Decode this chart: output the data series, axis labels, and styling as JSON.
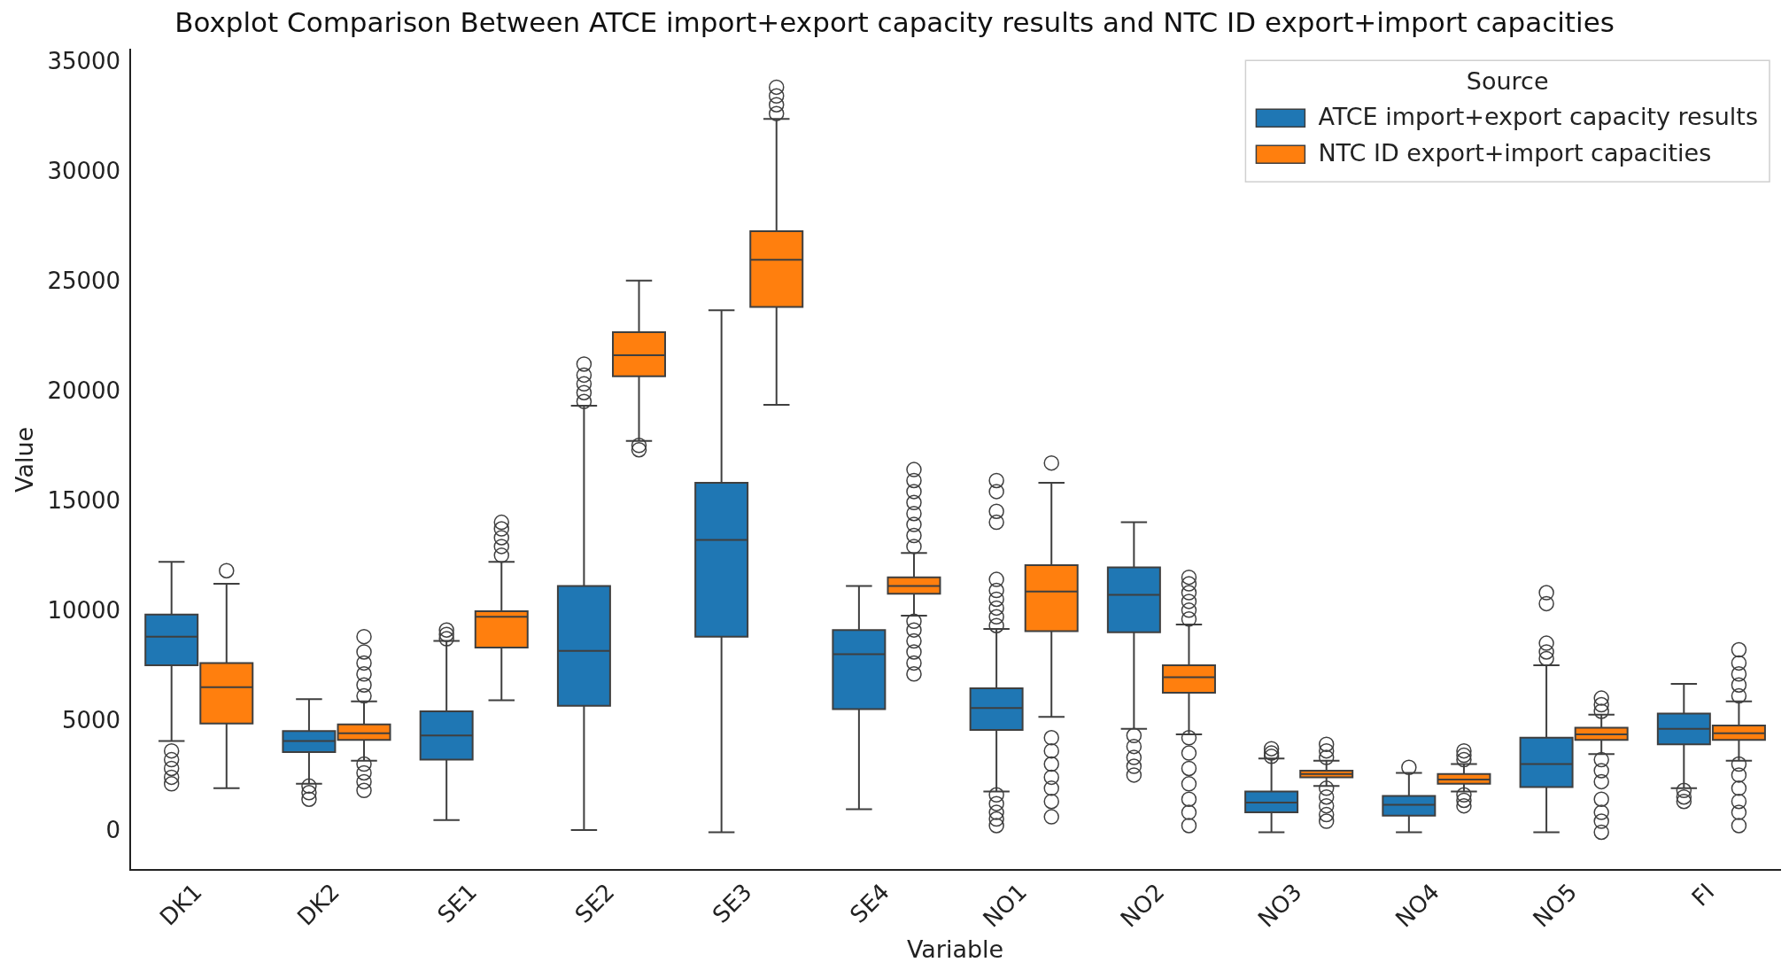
{
  "chart_data": {
    "type": "box",
    "title": "Boxplot Comparison Between ATCE import+export capacity results and NTC ID export+import capacities",
    "xlabel": "Variable",
    "ylabel": "Value",
    "legend_title": "Source",
    "legend": "top right",
    "marker": "circle",
    "categories": [
      "DK1",
      "DK2",
      "SE1",
      "SE2",
      "SE3",
      "SE4",
      "NO1",
      "NO2",
      "NO3",
      "NO4",
      "NO5",
      "FI"
    ],
    "ylim": [
      -1700,
      35600
    ],
    "yticks": [
      0,
      5000,
      10000,
      15000,
      20000,
      25000,
      30000,
      35000
    ],
    "series": [
      {
        "name": "ATCE import+export capacity results",
        "color": "#1f77b4",
        "boxes": [
          {
            "low": 4150,
            "q1": 7600,
            "median": 8900,
            "q3": 9900,
            "high": 12300,
            "outliers": [
              3700,
              3300,
              2900,
              2500,
              2200
            ]
          },
          {
            "low": 2200,
            "q1": 3650,
            "median": 4150,
            "q3": 4600,
            "high": 6050,
            "outliers": [
              2100,
              1800,
              1500
            ]
          },
          {
            "low": 550,
            "q1": 3300,
            "median": 4400,
            "q3": 5500,
            "high": 8700,
            "outliers": [
              8800,
              9000,
              9200
            ]
          },
          {
            "low": 100,
            "q1": 5750,
            "median": 8250,
            "q3": 11200,
            "high": 19400,
            "outliers": [
              19600,
              20000,
              20400,
              20800,
              21300
            ]
          },
          {
            "low": 0,
            "q1": 8900,
            "median": 13300,
            "q3": 15900,
            "high": 23750
          },
          {
            "low": 1050,
            "q1": 5600,
            "median": 8100,
            "q3": 9200,
            "high": 11200
          },
          {
            "low": 1850,
            "q1": 4650,
            "median": 5650,
            "q3": 6550,
            "high": 9250,
            "outliers": [
              9400,
              9800,
              10200,
              10600,
              11000,
              11500,
              14100,
              14600,
              15500,
              16000,
              1700,
              1300,
              900,
              600,
              300
            ]
          },
          {
            "low": 4700,
            "q1": 9100,
            "median": 10800,
            "q3": 12050,
            "high": 14100,
            "outliers": [
              4400,
              3900,
              3400,
              3000,
              2600
            ]
          },
          {
            "low": 0,
            "q1": 900,
            "median": 1350,
            "q3": 1850,
            "high": 3350,
            "outliers": [
              3450,
              3600,
              3800
            ]
          },
          {
            "low": 0,
            "q1": 750,
            "median": 1250,
            "q3": 1650,
            "high": 2700,
            "outliers": [
              2950
            ]
          },
          {
            "low": 0,
            "q1": 2050,
            "median": 3100,
            "q3": 4300,
            "high": 7600,
            "outliers": [
              7900,
              8200,
              8600,
              10400,
              10900
            ]
          },
          {
            "low": 2000,
            "q1": 4000,
            "median": 4700,
            "q3": 5400,
            "high": 6750,
            "outliers": [
              1900,
              1600,
              1400
            ]
          }
        ]
      },
      {
        "name": "NTC ID export+import capacities",
        "color": "#ff7f0e",
        "boxes": [
          {
            "low": 2000,
            "q1": 4950,
            "median": 6600,
            "q3": 7700,
            "high": 11300,
            "outliers": [
              11900
            ]
          },
          {
            "low": 3250,
            "q1": 4200,
            "median": 4500,
            "q3": 4900,
            "high": 5950,
            "outliers": [
              6200,
              6700,
              7200,
              7700,
              8200,
              8900,
              3100,
              2700,
              2300,
              1900
            ]
          },
          {
            "low": 6000,
            "q1": 8400,
            "median": 9800,
            "q3": 10050,
            "high": 12300,
            "outliers": [
              12600,
              13000,
              13400,
              13800,
              14100
            ]
          },
          {
            "low": 17800,
            "q1": 20750,
            "median": 21700,
            "q3": 22750,
            "high": 25100,
            "outliers": [
              17600,
              17400
            ]
          },
          {
            "low": 19450,
            "q1": 23900,
            "median": 26050,
            "q3": 27350,
            "high": 32450,
            "outliers": [
              32700,
              33100,
              33500,
              33900
            ]
          },
          {
            "low": 9850,
            "q1": 10850,
            "median": 11200,
            "q3": 11600,
            "high": 12700,
            "outliers": [
              13000,
              13500,
              14000,
              14500,
              15000,
              15500,
              16000,
              16500,
              9600,
              9200,
              8700,
              8200,
              7700,
              7200
            ]
          },
          {
            "low": 5250,
            "q1": 9150,
            "median": 10950,
            "q3": 12150,
            "high": 15900,
            "outliers": [
              16800,
              4300,
              3700,
              3100,
              2500,
              2000,
              1400,
              700
            ]
          },
          {
            "low": 4450,
            "q1": 6350,
            "median": 7050,
            "q3": 7600,
            "high": 9450,
            "outliers": [
              9700,
              10100,
              10500,
              10900,
              11300,
              11600,
              4300,
              3600,
              2900,
              2200,
              1500,
              900,
              300
            ]
          },
          {
            "low": 2100,
            "q1": 2500,
            "median": 2650,
            "q3": 2800,
            "high": 3250,
            "outliers": [
              3400,
              3700,
              4000,
              2000,
              1600,
              1200,
              800,
              500
            ]
          },
          {
            "low": 1850,
            "q1": 2200,
            "median": 2400,
            "q3": 2650,
            "high": 3100,
            "outliers": [
              3300,
              3500,
              3700,
              1700,
              1450,
              1200
            ]
          },
          {
            "low": 3550,
            "q1": 4200,
            "median": 4450,
            "q3": 4750,
            "high": 5350,
            "outliers": [
              5500,
              5800,
              6100,
              3300,
              2800,
              2300,
              1500,
              900,
              500,
              0
            ]
          },
          {
            "low": 3250,
            "q1": 4200,
            "median": 4500,
            "q3": 4850,
            "high": 5950,
            "outliers": [
              6200,
              6700,
              7200,
              7700,
              8300,
              3100,
              2600,
              2000,
              1400,
              900,
              300
            ]
          }
        ]
      }
    ]
  }
}
